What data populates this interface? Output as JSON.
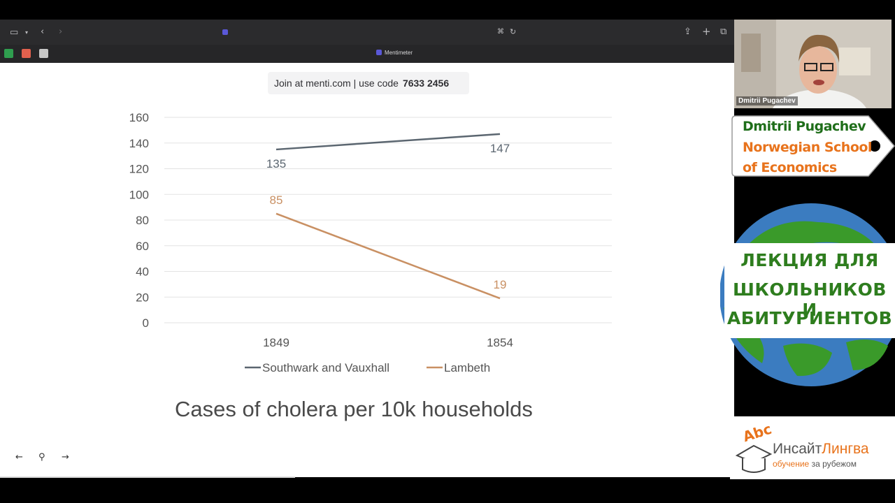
{
  "browser": {
    "tab_title": "Mentimeter"
  },
  "slide": {
    "join_text": "Join at menti.com | use code",
    "join_code": "7633 2456",
    "chart_caption": "Cases of cholera per 10k households",
    "nav": {
      "prev_icon": "←",
      "pin_icon": "⚲",
      "next_icon": "→"
    }
  },
  "chart_data": {
    "type": "line",
    "x": [
      "1849",
      "1854"
    ],
    "ylim": [
      0,
      160
    ],
    "yticks": [
      0,
      20,
      40,
      60,
      80,
      100,
      120,
      140,
      160
    ],
    "grid": true,
    "legend": "bottom",
    "series": [
      {
        "name": "Southwark and Vauxhall",
        "values": [
          135,
          147
        ],
        "labels": [
          "135",
          "147"
        ],
        "color": "#5b6670"
      },
      {
        "name": "Lambeth",
        "values": [
          85,
          19
        ],
        "labels": [
          "85",
          "19"
        ],
        "color": "#c99063"
      }
    ]
  },
  "webcam": {
    "name": "Dmitrii Pugachev"
  },
  "name_tag": {
    "name": "Dmitrii Pugachev",
    "affiliation_line1": "Norwegian School",
    "affiliation_line2": "of Economics"
  },
  "banner": {
    "line1": "ЛЕКЦИЯ ДЛЯ",
    "line2": "ШКОЛЬНИКОВ И",
    "line3": "АБИТУРИЕНТОВ"
  },
  "logo": {
    "name_part1": "Инсайт",
    "name_part2": "Лингва",
    "tagline_part1": "обучение",
    "tagline_part2": "за рубежом",
    "abc": "Abc"
  },
  "colors": {
    "name_green": "#1f6e1a",
    "name_orange": "#e8731c",
    "banner_green": "#2e7d1e",
    "brand_orange": "#e8731c"
  }
}
